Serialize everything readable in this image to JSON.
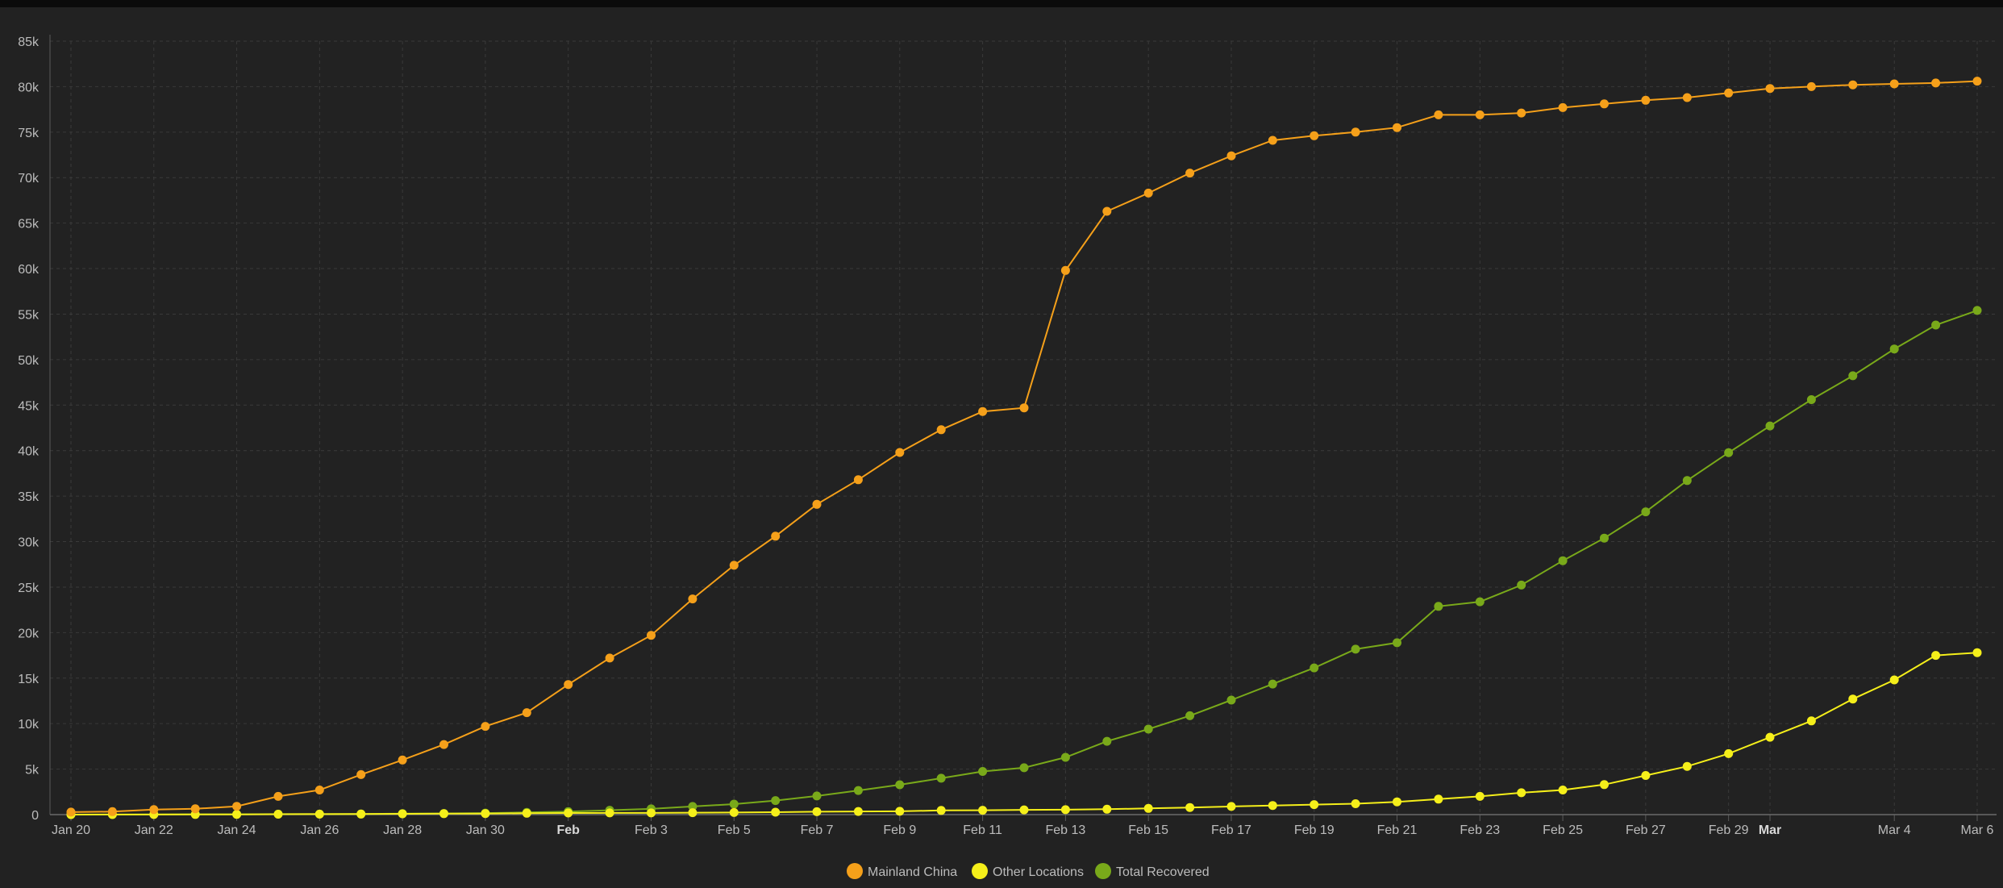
{
  "chart_data": {
    "type": "line",
    "title": "",
    "xlabel": "",
    "ylabel": "",
    "ylim": [
      0,
      85000
    ],
    "y_ticks": [
      0,
      5000,
      10000,
      15000,
      20000,
      25000,
      30000,
      35000,
      40000,
      45000,
      50000,
      55000,
      60000,
      65000,
      70000,
      75000,
      80000,
      85000
    ],
    "y_tick_labels": [
      "0",
      "5k",
      "10k",
      "15k",
      "20k",
      "25k",
      "30k",
      "35k",
      "40k",
      "45k",
      "50k",
      "55k",
      "60k",
      "65k",
      "70k",
      "75k",
      "80k",
      "85k"
    ],
    "x_ticks": [
      {
        "label": "Jan 20",
        "date": "2020-01-20",
        "bold": false
      },
      {
        "label": "Jan 22",
        "date": "2020-01-22",
        "bold": false
      },
      {
        "label": "Jan 24",
        "date": "2020-01-24",
        "bold": false
      },
      {
        "label": "Jan 26",
        "date": "2020-01-26",
        "bold": false
      },
      {
        "label": "Jan 28",
        "date": "2020-01-28",
        "bold": false
      },
      {
        "label": "Jan 30",
        "date": "2020-01-30",
        "bold": false
      },
      {
        "label": "Feb",
        "date": "2020-02-01",
        "bold": true
      },
      {
        "label": "Feb 3",
        "date": "2020-02-03",
        "bold": false
      },
      {
        "label": "Feb 5",
        "date": "2020-02-05",
        "bold": false
      },
      {
        "label": "Feb 7",
        "date": "2020-02-07",
        "bold": false
      },
      {
        "label": "Feb 9",
        "date": "2020-02-09",
        "bold": false
      },
      {
        "label": "Feb 11",
        "date": "2020-02-11",
        "bold": false
      },
      {
        "label": "Feb 13",
        "date": "2020-02-13",
        "bold": false
      },
      {
        "label": "Feb 15",
        "date": "2020-02-15",
        "bold": false
      },
      {
        "label": "Feb 17",
        "date": "2020-02-17",
        "bold": false
      },
      {
        "label": "Feb 19",
        "date": "2020-02-19",
        "bold": false
      },
      {
        "label": "Feb 21",
        "date": "2020-02-21",
        "bold": false
      },
      {
        "label": "Feb 23",
        "date": "2020-02-23",
        "bold": false
      },
      {
        "label": "Feb 25",
        "date": "2020-02-25",
        "bold": false
      },
      {
        "label": "Feb 27",
        "date": "2020-02-27",
        "bold": false
      },
      {
        "label": "Feb 29",
        "date": "2020-02-29",
        "bold": false
      },
      {
        "label": "Mar",
        "date": "2020-03-01",
        "bold": true
      },
      {
        "label": "Mar 4",
        "date": "2020-03-04",
        "bold": false
      },
      {
        "label": "Mar 6",
        "date": "2020-03-06",
        "bold": false
      }
    ],
    "x_start": "2020-01-20",
    "x_end": "2020-03-06",
    "grid": true,
    "legend_position": "bottom-center",
    "series": [
      {
        "name": "Mainland China",
        "color": "#f5a01a",
        "values": [
          278,
          326,
          547,
          639,
          916,
          2000,
          2700,
          4400,
          6000,
          7700,
          9700,
          11200,
          14300,
          17200,
          19700,
          23700,
          27400,
          30600,
          34100,
          36800,
          39800,
          42300,
          44300,
          44700,
          59800,
          66300,
          68300,
          70500,
          72400,
          74100,
          74600,
          75000,
          75500,
          76900,
          76900,
          77100,
          77700,
          78100,
          78500,
          78800,
          79300,
          79800,
          80000,
          80200,
          80300,
          80400,
          80600
        ]
      },
      {
        "name": "Other Locations",
        "color": "#f5ef1a",
        "values": [
          4,
          6,
          8,
          14,
          25,
          40,
          57,
          64,
          87,
          105,
          118,
          153,
          173,
          183,
          188,
          212,
          227,
          265,
          317,
          343,
          361,
          457,
          476,
          523,
          538,
          595,
          685,
          780,
          896,
          999,
          1100,
          1200,
          1400,
          1700,
          2000,
          2400,
          2700,
          3300,
          4300,
          5300,
          6700,
          8500,
          10300,
          12700,
          14800,
          17500,
          17800
        ]
      },
      {
        "name": "Total Recovered",
        "color": "#79a91a",
        "values": [
          0,
          0,
          28,
          34,
          38,
          49,
          51,
          60,
          103,
          124,
          171,
          243,
          328,
          475,
          632,
          892,
          1153,
          1540,
          2050,
          2649,
          3281,
          3996,
          4740,
          5150,
          6295,
          8058,
          9395,
          10865,
          12583,
          14352,
          16121,
          18177,
          18890,
          22886,
          23394,
          25227,
          27905,
          30384,
          33277,
          36711,
          39782,
          42716,
          45602,
          48228,
          51170,
          53797,
          55404
        ]
      }
    ]
  }
}
